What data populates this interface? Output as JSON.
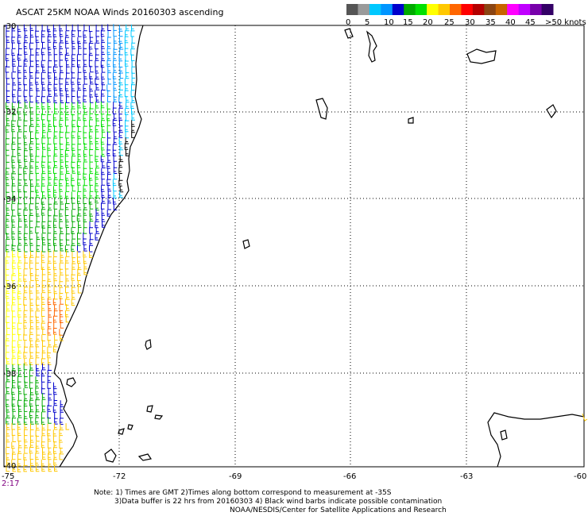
{
  "title": "ASCAT 25KM NOAA Winds 20160303 ascending",
  "legend": {
    "colors": [
      "#555555",
      "#9a9a9a",
      "#00c8ff",
      "#0095ff",
      "#0000cc",
      "#00aa00",
      "#00e000",
      "#ffff00",
      "#ffc800",
      "#ff6600",
      "#ff0000",
      "#b40000",
      "#8b4513",
      "#c86400",
      "#ff00ff",
      "#c000ff",
      "#7700aa",
      "#330066"
    ],
    "labels": [
      "0",
      "5",
      "10",
      "15",
      "20",
      "25",
      "30",
      "35",
      "40",
      "45",
      ">50 knots"
    ],
    "label_colors": [
      "#000000",
      "#000000",
      "#000000",
      "#000000",
      "#000000",
      "#000000",
      "#000000",
      "#000000",
      "#000000",
      "#000000",
      "#000000"
    ]
  },
  "lat_labels": [
    "-30",
    "-32",
    "-34",
    "-36",
    "-38",
    "-40"
  ],
  "lon_labels": [
    "-75",
    "-72",
    "-69",
    "-66",
    "-63",
    "-60"
  ],
  "time_label": "2:17",
  "notes": [
    "Note: 1) Times are GMT 2)Times along bottom correspond to measurement at -35S",
    "3)Data buffer is 22 hrs from 20160303 4) Black wind barbs indicate possible contamination",
    "NOAA/NESDIS/Center for Satellite Applications and Research"
  ],
  "barb_colors": {
    "blue": "#0000cc",
    "lightblue": "#0095ff",
    "cyan": "#00c8ff",
    "green": "#00aa00",
    "lightgreen": "#00e000",
    "yellow": "#ffff00",
    "orange": "#ffc800",
    "darkorange": "#ff6600",
    "black": "#000000"
  }
}
